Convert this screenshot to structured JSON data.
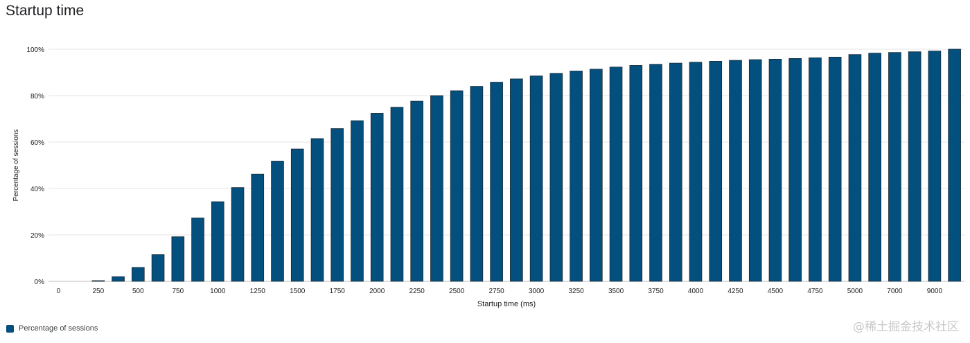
{
  "page": {
    "title": "Startup time",
    "watermark": "@稀土掘金技术社区"
  },
  "colors": {
    "bar": "#034f7e",
    "bar_stroke": "#1c2a33",
    "grid": "#e6e6e6",
    "axis": "#bdbdbd",
    "text": "#202124"
  },
  "chart_data": {
    "type": "bar",
    "title": "Startup time",
    "xlabel": "Startup time (ms)",
    "ylabel": "Percentage of sessions",
    "ylim": [
      0,
      100
    ],
    "yticks": [
      "0%",
      "20%",
      "40%",
      "60%",
      "80%",
      "100%"
    ],
    "grid": true,
    "legend_position": "bottom-left",
    "x_tick_labels": [
      "0",
      "250",
      "500",
      "750",
      "1000",
      "1250",
      "1500",
      "1750",
      "2000",
      "2250",
      "2500",
      "2750",
      "3000",
      "3250",
      "3500",
      "3750",
      "4000",
      "4250",
      "4500",
      "4750",
      "5000",
      "7000",
      "9000"
    ],
    "series": [
      {
        "name": "Percentage of sessions",
        "color": "#034f7e",
        "values": [
          0,
          0,
          0.3,
          2.0,
          6.0,
          11.5,
          19.2,
          27.3,
          34.3,
          40.4,
          46.2,
          51.8,
          57.0,
          61.5,
          65.8,
          69.2,
          72.4,
          75.0,
          77.6,
          80.0,
          82.1,
          84.0,
          85.8,
          87.2,
          88.5,
          89.6,
          90.6,
          91.4,
          92.3,
          93.0,
          93.5,
          94.0,
          94.4,
          94.8,
          95.2,
          95.5,
          95.7,
          96.0,
          96.3,
          96.6,
          97.7,
          98.3,
          98.6,
          98.9,
          99.2,
          100
        ]
      }
    ]
  },
  "legend": {
    "items": [
      {
        "label": "Percentage of sessions",
        "color": "#034f7e"
      }
    ]
  }
}
